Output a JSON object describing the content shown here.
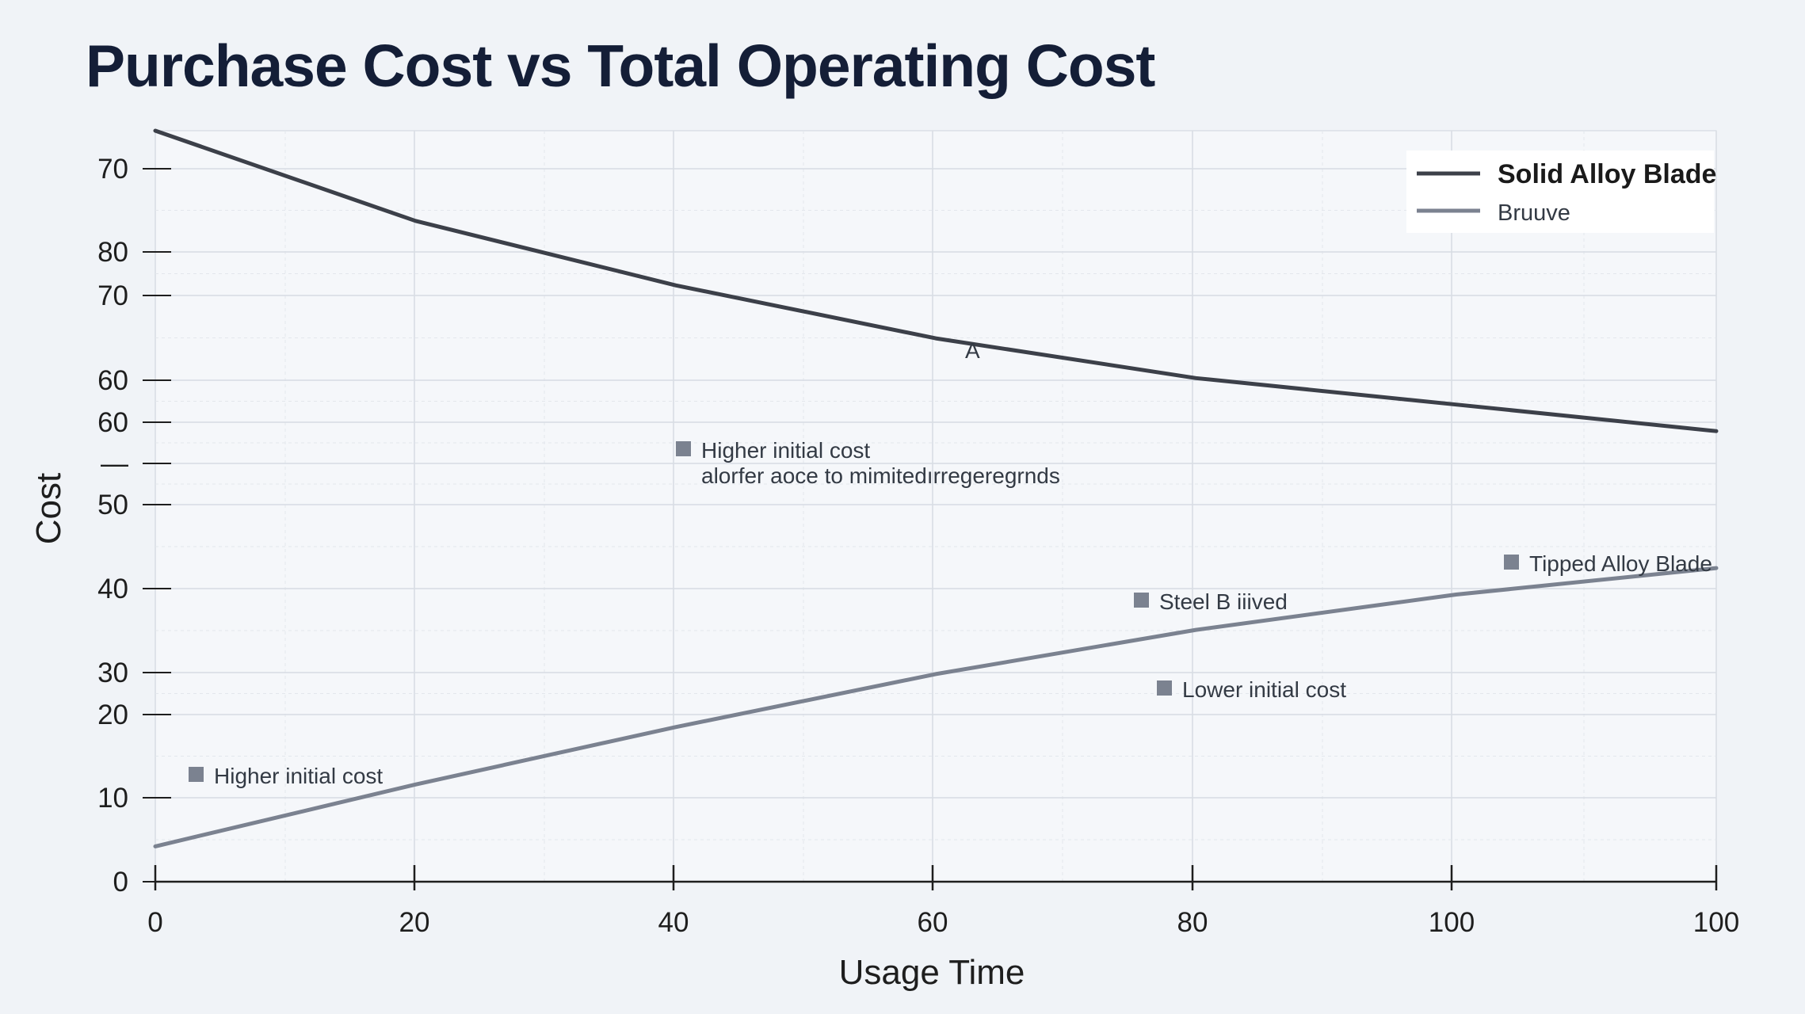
{
  "chart_data": {
    "type": "line",
    "title": "Purchase Cost vs Total Operating Cost",
    "xlabel": "Usage Time",
    "ylabel": "Cost",
    "grid": true,
    "legend_position": "top-right",
    "x_ticks": [
      "0",
      "20",
      "40",
      "60",
      "80",
      "100",
      "100"
    ],
    "y_ticks": [
      "0",
      "10",
      "20",
      "30",
      "40",
      "50",
      "—",
      "60",
      "60",
      "70",
      "80",
      "70"
    ],
    "xlim": [
      0,
      120
    ],
    "ylim": [
      0,
      85
    ],
    "series": [
      {
        "name": "Solid Alloy Blade",
        "color": "#3c4049",
        "x": [
          0,
          20,
          40,
          60,
          80,
          100,
          120
        ],
        "y": [
          85,
          74.8,
          67.5,
          61.5,
          57,
          54,
          51
        ]
      },
      {
        "name": "Bruuve",
        "color": "#7b8290",
        "x": [
          0,
          20,
          40,
          60,
          80,
          100,
          120
        ],
        "y": [
          4,
          11,
          17.5,
          23.5,
          28.5,
          32.5,
          35.5
        ]
      }
    ],
    "annotations": [
      {
        "text": "A",
        "marker": false
      },
      {
        "text": "Higher initial cost",
        "marker": true
      },
      {
        "text": "alorfer aoce to mimitedırregeregrnds",
        "marker": false
      },
      {
        "text": "Tipped Alloy Blade",
        "marker": true
      },
      {
        "text": "Steel B iiived",
        "marker": true
      },
      {
        "text": "Lower initial cost",
        "marker": true
      },
      {
        "text": "Higher initial cost",
        "marker": true
      }
    ]
  }
}
